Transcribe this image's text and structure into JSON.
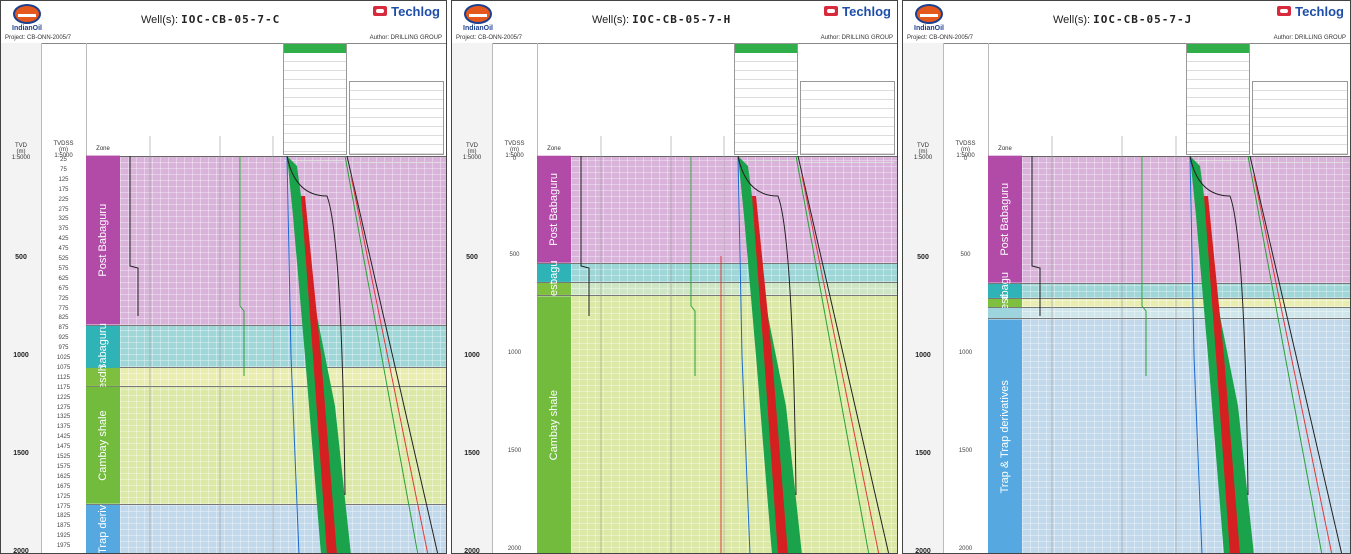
{
  "panels": [
    {
      "logo_text": "IndianOil",
      "project": "Project: CB-ONN-2005/7",
      "well_label": "Well(s):",
      "well_name": "IOC-CB-05-7-C",
      "brand": "Techlog",
      "author": "Author: DRILLING GROUP",
      "tvd_header": "TVD\n(m)\n1:5000",
      "tvdss_header": "TVDSS\n(m)\n1:5000",
      "zone_header": "Zone",
      "tvd_ticks": [
        "500",
        "1000",
        "1500",
        "2000"
      ],
      "tvdss_ticks": [
        "25",
        "75",
        "125",
        "175",
        "225",
        "275",
        "325",
        "375",
        "425",
        "475",
        "525",
        "575",
        "625",
        "675",
        "725",
        "775",
        "825",
        "875",
        "925",
        "975",
        "1025",
        "1075",
        "1125",
        "1175",
        "1225",
        "1275",
        "1325",
        "1375",
        "1425",
        "1475",
        "1525",
        "1575",
        "1625",
        "1675",
        "1725",
        "1775",
        "1825",
        "1875",
        "1925",
        "1975"
      ],
      "zones": [
        {
          "name": "Post Babaguru",
          "color": "#b24aa8",
          "fill": "#dab3db",
          "top": 0,
          "bottom": 170
        },
        {
          "name": "Babaguru",
          "color": "#2fb3b7",
          "fill": "#9fd6d8",
          "top": 170,
          "bottom": 213
        },
        {
          "name": "esdh",
          "color": "#7fbf3f",
          "fill": "#e9eeb0",
          "top": 213,
          "bottom": 232
        },
        {
          "name": "Cambay shale",
          "color": "#72bb3c",
          "fill": "#dbe8a6",
          "top": 232,
          "bottom": 350
        },
        {
          "name": "Trap deriv",
          "color": "#55a8e0",
          "fill": "#c2d9ec",
          "top": 350,
          "bottom": 400
        }
      ]
    },
    {
      "logo_text": "IndianOil",
      "project": "Project: CB-ONN-2005/7",
      "well_label": "Well(s):",
      "well_name": "IOC-CB-05-7-H",
      "brand": "Techlog",
      "author": "Author: DRILLING GROUP",
      "tvd_header": "TVD\n(m)\n1:5000",
      "tvdss_header": "TVDSS\n(m)\n1:5000",
      "zone_header": "Zone",
      "tvd_ticks": [
        "500",
        "1000",
        "1500",
        "2000"
      ],
      "tvdss_ticks": [
        "0",
        "500",
        "1000",
        "1500",
        "2000"
      ],
      "zones": [
        {
          "name": "Post Babaguru",
          "color": "#b24aa8",
          "fill": "#dab3db",
          "top": 0,
          "bottom": 108
        },
        {
          "name": "bagu",
          "color": "#2fb3b7",
          "fill": "#9fd6d8",
          "top": 108,
          "bottom": 127
        },
        {
          "name": "est",
          "color": "#7fbf3f",
          "fill": "#cfe6c6",
          "top": 127,
          "bottom": 140
        },
        {
          "name": "Cambay shale",
          "color": "#72bb3c",
          "fill": "#dbe8a6",
          "top": 140,
          "bottom": 400
        }
      ]
    },
    {
      "logo_text": "IndianOil",
      "project": "Project: CB-ONN-2005/7",
      "well_label": "Well(s):",
      "well_name": "IOC-CB-05-7-J",
      "brand": "Techlog",
      "author": "Author: DRILLING GROUP",
      "tvd_header": "TVD\n(m)\n1:5000",
      "tvdss_header": "TVDSS\n(m)\n1:5000",
      "zone_header": "Zone",
      "tvd_ticks": [
        "500",
        "1000",
        "1500",
        "2000"
      ],
      "tvdss_ticks": [
        "0",
        "500",
        "1000",
        "1500",
        "2000"
      ],
      "zones": [
        {
          "name": "Post Babaguru",
          "color": "#b24aa8",
          "fill": "#dab3db",
          "top": 0,
          "bottom": 128
        },
        {
          "name": "Babagu",
          "color": "#2fb3b7",
          "fill": "#9fd6d8",
          "top": 128,
          "bottom": 143
        },
        {
          "name": "est",
          "color": "#7fbf3f",
          "fill": "#e9eeb0",
          "top": 143,
          "bottom": 152
        },
        {
          "name": "",
          "color": "#9ed4de",
          "fill": "#cfe6ea",
          "top": 152,
          "bottom": 163
        },
        {
          "name": "Trap & Trap derivatives",
          "color": "#55a8e0",
          "fill": "#c2d9ec",
          "top": 163,
          "bottom": 400
        }
      ]
    }
  ],
  "colors": {
    "pressure_fill": "#1aa34a",
    "pressure_red": "#d42020",
    "curve_black": "#222222",
    "curve_green": "#2aa038",
    "curve_red": "#e03a3a"
  }
}
